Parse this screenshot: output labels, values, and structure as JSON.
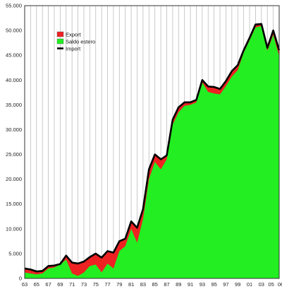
{
  "chart_data": {
    "type": "area",
    "xlabel": "",
    "ylabel": "",
    "xlim": [
      1963,
      2006
    ],
    "ylim": [
      0,
      55000
    ],
    "grid": {
      "vertical": true,
      "horizontal": false
    },
    "legend_placement": "top-left",
    "y_ticks": [
      0,
      5000,
      10000,
      15000,
      20000,
      25000,
      30000,
      35000,
      40000,
      45000,
      50000,
      55000
    ],
    "y_tick_labels": [
      "0",
      "5.000",
      "10.000",
      "15.000",
      "20.000",
      "25.000",
      "30.000",
      "35.000",
      "40.000",
      "45.000",
      "50.000",
      "55.000"
    ],
    "x_ticks": [
      1963,
      1965,
      1967,
      1969,
      1971,
      1973,
      1975,
      1977,
      1979,
      1981,
      1983,
      1985,
      1987,
      1989,
      1991,
      1993,
      1995,
      1997,
      1999,
      2001,
      2003,
      2005,
      2006
    ],
    "x_tick_labels": [
      "63",
      "65",
      "67",
      "69",
      "71",
      "73",
      "75",
      "77",
      "79",
      "81",
      "83",
      "85",
      "87",
      "89",
      "91",
      "93",
      "95",
      "97",
      "99",
      "01",
      "03",
      "05",
      "06"
    ],
    "x": [
      1963,
      1964,
      1965,
      1966,
      1967,
      1968,
      1969,
      1970,
      1971,
      1972,
      1973,
      1974,
      1975,
      1976,
      1977,
      1978,
      1979,
      1980,
      1981,
      1982,
      1983,
      1984,
      1985,
      1986,
      1987,
      1988,
      1989,
      1990,
      1991,
      1992,
      1993,
      1994,
      1995,
      1996,
      1997,
      1998,
      1999,
      2000,
      2001,
      2002,
      2003,
      2004,
      2005,
      2006
    ],
    "series": [
      {
        "name": "Export",
        "color": "#ee2222",
        "values": [
          2000,
          1800,
          1400,
          1500,
          2500,
          2600,
          2900,
          4600,
          3200,
          3000,
          3400,
          4300,
          5000,
          4200,
          5500,
          5200,
          7500,
          8000,
          11500,
          10200,
          14000,
          22000,
          25000,
          24000,
          24800,
          32000,
          34500,
          35500,
          35500,
          36000,
          40000,
          38700,
          38600,
          38200,
          39800,
          41800,
          43000,
          46000,
          48500,
          51200,
          51300,
          46500,
          50000,
          46000
        ]
      },
      {
        "name": "Saldo estero",
        "color": "#22ee22",
        "values": [
          1200,
          1000,
          800,
          1000,
          2000,
          2200,
          2800,
          3800,
          1000,
          500,
          1200,
          2500,
          2800,
          1200,
          3000,
          2000,
          5500,
          6500,
          10000,
          7200,
          12000,
          20000,
          23500,
          22000,
          24000,
          31000,
          33500,
          34800,
          35000,
          35500,
          39500,
          37600,
          37300,
          37100,
          38800,
          40700,
          42000,
          45500,
          48000,
          50600,
          50900,
          45900,
          49100,
          44800
        ]
      },
      {
        "name": "Import",
        "color": "#000000",
        "values": [
          2000,
          1800,
          1400,
          1500,
          2500,
          2600,
          2900,
          4600,
          3200,
          3000,
          3400,
          4300,
          5000,
          4200,
          5500,
          5200,
          7500,
          8000,
          11500,
          10200,
          14000,
          22000,
          25000,
          24000,
          24800,
          32000,
          34500,
          35500,
          35500,
          36000,
          40000,
          38700,
          38600,
          38200,
          39800,
          41800,
          43000,
          46000,
          48500,
          51200,
          51300,
          46500,
          50000,
          46000
        ]
      }
    ]
  }
}
